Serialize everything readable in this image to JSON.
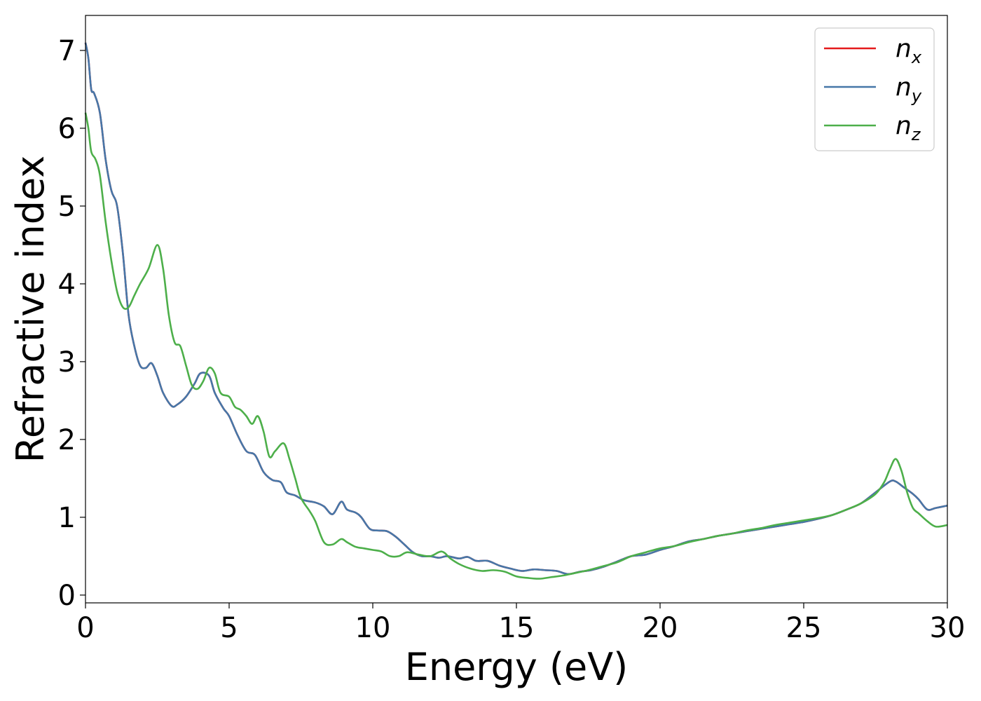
{
  "chart_data": {
    "type": "line",
    "xlabel": "Energy (eV)",
    "ylabel": "Refractive index",
    "xlim": [
      0,
      30
    ],
    "ylim": [
      -0.1,
      7.45
    ],
    "xticks": [
      "0",
      "5",
      "10",
      "15",
      "20",
      "25",
      "30"
    ],
    "yticks": [
      "0",
      "1",
      "2",
      "3",
      "4",
      "5",
      "6",
      "7"
    ],
    "grid": false,
    "legend_position": "top-right",
    "series": [
      {
        "name": "n",
        "subscript": "x",
        "color": "#e41a1c",
        "x": [
          0,
          0.1,
          0.2,
          0.3,
          0.5,
          0.7,
          0.9,
          1.1,
          1.3,
          1.5,
          1.7,
          1.9,
          2.1,
          2.3,
          2.5,
          2.7,
          3.0,
          3.2,
          3.5,
          3.8,
          4.0,
          4.3,
          4.5,
          4.8,
          5.0,
          5.3,
          5.6,
          5.9,
          6.2,
          6.5,
          6.8,
          7.0,
          7.3,
          7.6,
          8.0,
          8.3,
          8.6,
          8.9,
          9.1,
          9.4,
          9.6,
          9.9,
          10.2,
          10.5,
          10.8,
          11.1,
          11.4,
          11.7,
          12.0,
          12.3,
          12.6,
          13.0,
          13.3,
          13.6,
          14.0,
          14.4,
          14.8,
          15.2,
          15.6,
          16.0,
          16.4,
          16.8,
          17.2,
          17.6,
          18.0,
          18.5,
          19.0,
          19.5,
          20.0,
          20.5,
          21.0,
          21.5,
          22.0,
          22.5,
          23.0,
          23.5,
          24.0,
          24.5,
          25.0,
          25.5,
          26.0,
          26.5,
          27.0,
          27.5,
          28.0,
          28.2,
          28.5,
          28.8,
          29.0,
          29.3,
          29.6,
          30.0
        ],
        "y": [
          7.1,
          6.9,
          6.5,
          6.45,
          6.2,
          5.6,
          5.2,
          5.0,
          4.4,
          3.6,
          3.2,
          2.95,
          2.92,
          2.98,
          2.82,
          2.6,
          2.43,
          2.45,
          2.55,
          2.72,
          2.85,
          2.82,
          2.6,
          2.4,
          2.3,
          2.05,
          1.85,
          1.8,
          1.58,
          1.48,
          1.45,
          1.32,
          1.28,
          1.22,
          1.19,
          1.14,
          1.04,
          1.2,
          1.1,
          1.06,
          1.0,
          0.85,
          0.83,
          0.82,
          0.75,
          0.65,
          0.55,
          0.5,
          0.5,
          0.48,
          0.5,
          0.47,
          0.49,
          0.44,
          0.44,
          0.38,
          0.34,
          0.31,
          0.33,
          0.32,
          0.31,
          0.27,
          0.3,
          0.32,
          0.36,
          0.43,
          0.5,
          0.52,
          0.58,
          0.63,
          0.69,
          0.72,
          0.76,
          0.79,
          0.82,
          0.85,
          0.88,
          0.91,
          0.94,
          0.98,
          1.03,
          1.1,
          1.18,
          1.32,
          1.46,
          1.46,
          1.38,
          1.3,
          1.23,
          1.1,
          1.12,
          1.15
        ]
      },
      {
        "name": "n",
        "subscript": "y",
        "color": "#4677a8",
        "x": [
          0,
          0.1,
          0.2,
          0.3,
          0.5,
          0.7,
          0.9,
          1.1,
          1.3,
          1.5,
          1.7,
          1.9,
          2.1,
          2.3,
          2.5,
          2.7,
          3.0,
          3.2,
          3.5,
          3.8,
          4.0,
          4.3,
          4.5,
          4.8,
          5.0,
          5.3,
          5.6,
          5.9,
          6.2,
          6.5,
          6.8,
          7.0,
          7.3,
          7.6,
          8.0,
          8.3,
          8.6,
          8.9,
          9.1,
          9.4,
          9.6,
          9.9,
          10.2,
          10.5,
          10.8,
          11.1,
          11.4,
          11.7,
          12.0,
          12.3,
          12.6,
          13.0,
          13.3,
          13.6,
          14.0,
          14.4,
          14.8,
          15.2,
          15.6,
          16.0,
          16.4,
          16.8,
          17.2,
          17.6,
          18.0,
          18.5,
          19.0,
          19.5,
          20.0,
          20.5,
          21.0,
          21.5,
          22.0,
          22.5,
          23.0,
          23.5,
          24.0,
          24.5,
          25.0,
          25.5,
          26.0,
          26.5,
          27.0,
          27.5,
          28.0,
          28.2,
          28.5,
          28.8,
          29.0,
          29.3,
          29.6,
          30.0
        ],
        "y": [
          7.1,
          6.9,
          6.5,
          6.45,
          6.2,
          5.6,
          5.2,
          5.0,
          4.4,
          3.6,
          3.2,
          2.95,
          2.92,
          2.98,
          2.82,
          2.6,
          2.43,
          2.45,
          2.55,
          2.72,
          2.85,
          2.82,
          2.6,
          2.4,
          2.3,
          2.05,
          1.85,
          1.8,
          1.58,
          1.48,
          1.45,
          1.32,
          1.28,
          1.22,
          1.19,
          1.14,
          1.04,
          1.2,
          1.1,
          1.06,
          1.0,
          0.85,
          0.83,
          0.82,
          0.75,
          0.65,
          0.55,
          0.5,
          0.5,
          0.48,
          0.5,
          0.47,
          0.49,
          0.44,
          0.44,
          0.38,
          0.34,
          0.31,
          0.33,
          0.32,
          0.31,
          0.27,
          0.3,
          0.32,
          0.36,
          0.43,
          0.5,
          0.52,
          0.58,
          0.63,
          0.69,
          0.72,
          0.76,
          0.79,
          0.82,
          0.85,
          0.88,
          0.91,
          0.94,
          0.98,
          1.03,
          1.1,
          1.18,
          1.32,
          1.46,
          1.46,
          1.38,
          1.3,
          1.23,
          1.1,
          1.12,
          1.15
        ]
      },
      {
        "name": "n",
        "subscript": "z",
        "color": "#4daf4a",
        "x": [
          0,
          0.1,
          0.2,
          0.35,
          0.5,
          0.7,
          0.9,
          1.1,
          1.3,
          1.5,
          1.7,
          1.9,
          2.2,
          2.5,
          2.7,
          2.9,
          3.1,
          3.3,
          3.5,
          3.7,
          3.9,
          4.1,
          4.3,
          4.5,
          4.7,
          5.0,
          5.2,
          5.4,
          5.6,
          5.8,
          6.0,
          6.2,
          6.4,
          6.6,
          6.9,
          7.1,
          7.3,
          7.5,
          7.8,
          8.0,
          8.3,
          8.6,
          8.9,
          9.1,
          9.4,
          9.7,
          10.0,
          10.3,
          10.6,
          10.9,
          11.2,
          11.6,
          12.0,
          12.4,
          12.7,
          13.0,
          13.4,
          13.8,
          14.2,
          14.6,
          15.0,
          15.4,
          15.8,
          16.2,
          16.6,
          17.0,
          17.5,
          18.0,
          18.5,
          19.0,
          19.5,
          20.0,
          20.5,
          21.0,
          21.5,
          22.0,
          22.5,
          23.0,
          23.5,
          24.0,
          24.5,
          25.0,
          25.5,
          26.0,
          26.5,
          27.0,
          27.5,
          27.8,
          28.0,
          28.2,
          28.4,
          28.6,
          28.8,
          29.0,
          29.3,
          29.6,
          30.0
        ],
        "y": [
          6.2,
          6.0,
          5.7,
          5.6,
          5.4,
          4.8,
          4.3,
          3.9,
          3.7,
          3.7,
          3.85,
          4.0,
          4.2,
          4.5,
          4.2,
          3.6,
          3.25,
          3.2,
          2.95,
          2.7,
          2.65,
          2.75,
          2.92,
          2.85,
          2.6,
          2.55,
          2.42,
          2.38,
          2.3,
          2.2,
          2.3,
          2.1,
          1.78,
          1.85,
          1.95,
          1.75,
          1.5,
          1.25,
          1.08,
          0.95,
          0.68,
          0.65,
          0.72,
          0.68,
          0.62,
          0.6,
          0.58,
          0.56,
          0.5,
          0.5,
          0.55,
          0.52,
          0.5,
          0.56,
          0.47,
          0.4,
          0.34,
          0.31,
          0.32,
          0.3,
          0.24,
          0.22,
          0.21,
          0.23,
          0.25,
          0.28,
          0.32,
          0.37,
          0.42,
          0.5,
          0.55,
          0.6,
          0.63,
          0.68,
          0.72,
          0.76,
          0.79,
          0.83,
          0.86,
          0.9,
          0.93,
          0.96,
          0.99,
          1.03,
          1.1,
          1.18,
          1.3,
          1.45,
          1.62,
          1.75,
          1.6,
          1.32,
          1.12,
          1.05,
          0.95,
          0.88,
          0.9
        ]
      }
    ]
  }
}
